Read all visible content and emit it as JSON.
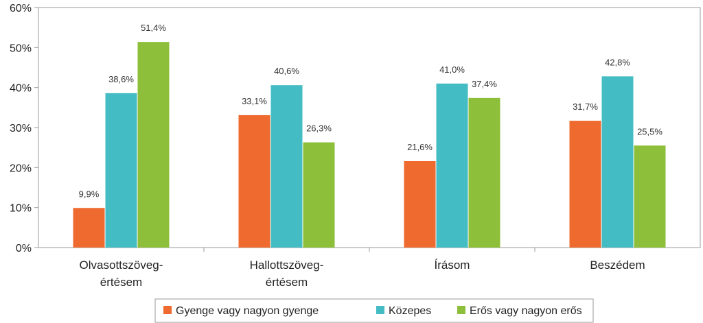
{
  "chart_data": {
    "type": "bar",
    "title": "",
    "xlabel": "",
    "ylabel": "",
    "ylim": [
      0,
      60
    ],
    "yticks": [
      "0%",
      "10%",
      "20%",
      "30%",
      "40%",
      "50%",
      "60%"
    ],
    "categories": [
      [
        "Olvasottszöveg-",
        "értésem"
      ],
      [
        "Hallottszöveg-",
        "értésem"
      ],
      [
        "Írásom"
      ],
      [
        "Beszédem"
      ]
    ],
    "series": [
      {
        "name": "Gyenge vagy nagyon gyenge",
        "color": "#ee6a2f",
        "values": [
          9.9,
          33.1,
          21.6,
          31.7
        ],
        "labels": [
          "9,9%",
          "33,1%",
          "21,6%",
          "31,7%"
        ]
      },
      {
        "name": "Közepes",
        "color": "#44bcc3",
        "values": [
          38.6,
          40.6,
          41.0,
          42.8
        ],
        "labels": [
          "38,6%",
          "40,6%",
          "41,0%",
          "42,8%"
        ]
      },
      {
        "name": "Erős vagy nagyon erős",
        "color": "#8dbf3a",
        "values": [
          51.4,
          26.3,
          37.4,
          25.5
        ],
        "labels": [
          "51,4%",
          "26,3%",
          "37,4%",
          "25,5%"
        ]
      }
    ],
    "grid": false,
    "legend": "bottom"
  }
}
